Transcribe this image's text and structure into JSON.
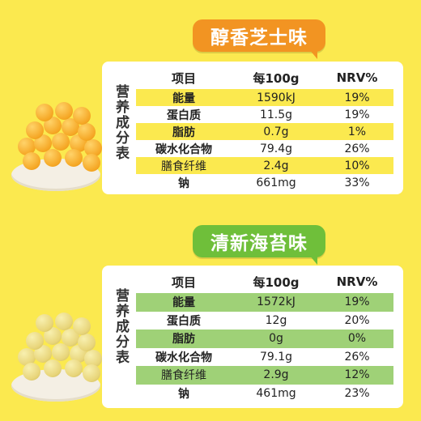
{
  "sections": [
    {
      "flavor": "醇香芝士味",
      "side_label": "营养成分表",
      "headers": [
        "项目",
        "每100g",
        "NRV%"
      ],
      "rows": [
        {
          "name": "能量",
          "per100g": "1590kJ",
          "nrv": "19%"
        },
        {
          "name": "蛋白质",
          "per100g": "11.5g",
          "nrv": "19%"
        },
        {
          "name": "脂肪",
          "per100g": "0.7g",
          "nrv": "1%"
        },
        {
          "name": "碳水化合物",
          "per100g": "79.4g",
          "nrv": "26%"
        },
        {
          "name": "膳食纤维",
          "per100g": "2.4g",
          "nrv": "10%"
        },
        {
          "name": "钠",
          "per100g": "661mg",
          "nrv": "33%"
        }
      ]
    },
    {
      "flavor": "清新海苔味",
      "side_label": "营养成分表",
      "headers": [
        "项目",
        "每100g",
        "NRV%"
      ],
      "rows": [
        {
          "name": "能量",
          "per100g": "1572kJ",
          "nrv": "19%"
        },
        {
          "name": "蛋白质",
          "per100g": "12g",
          "nrv": "20%"
        },
        {
          "name": "脂肪",
          "per100g": "0g",
          "nrv": "0%"
        },
        {
          "name": "碳水化合物",
          "per100g": "79.1g",
          "nrv": "26%"
        },
        {
          "name": "膳食纤维",
          "per100g": "2.9g",
          "nrv": "12%"
        },
        {
          "name": "钠",
          "per100g": "461mg",
          "nrv": "23%"
        }
      ]
    }
  ],
  "colors": {
    "background": "#fbe94f",
    "cheese_badge": "#f29422",
    "seaweed_badge": "#6fbf3a",
    "cheese_highlight": "#fbe94f",
    "seaweed_highlight": "#9fd177"
  }
}
